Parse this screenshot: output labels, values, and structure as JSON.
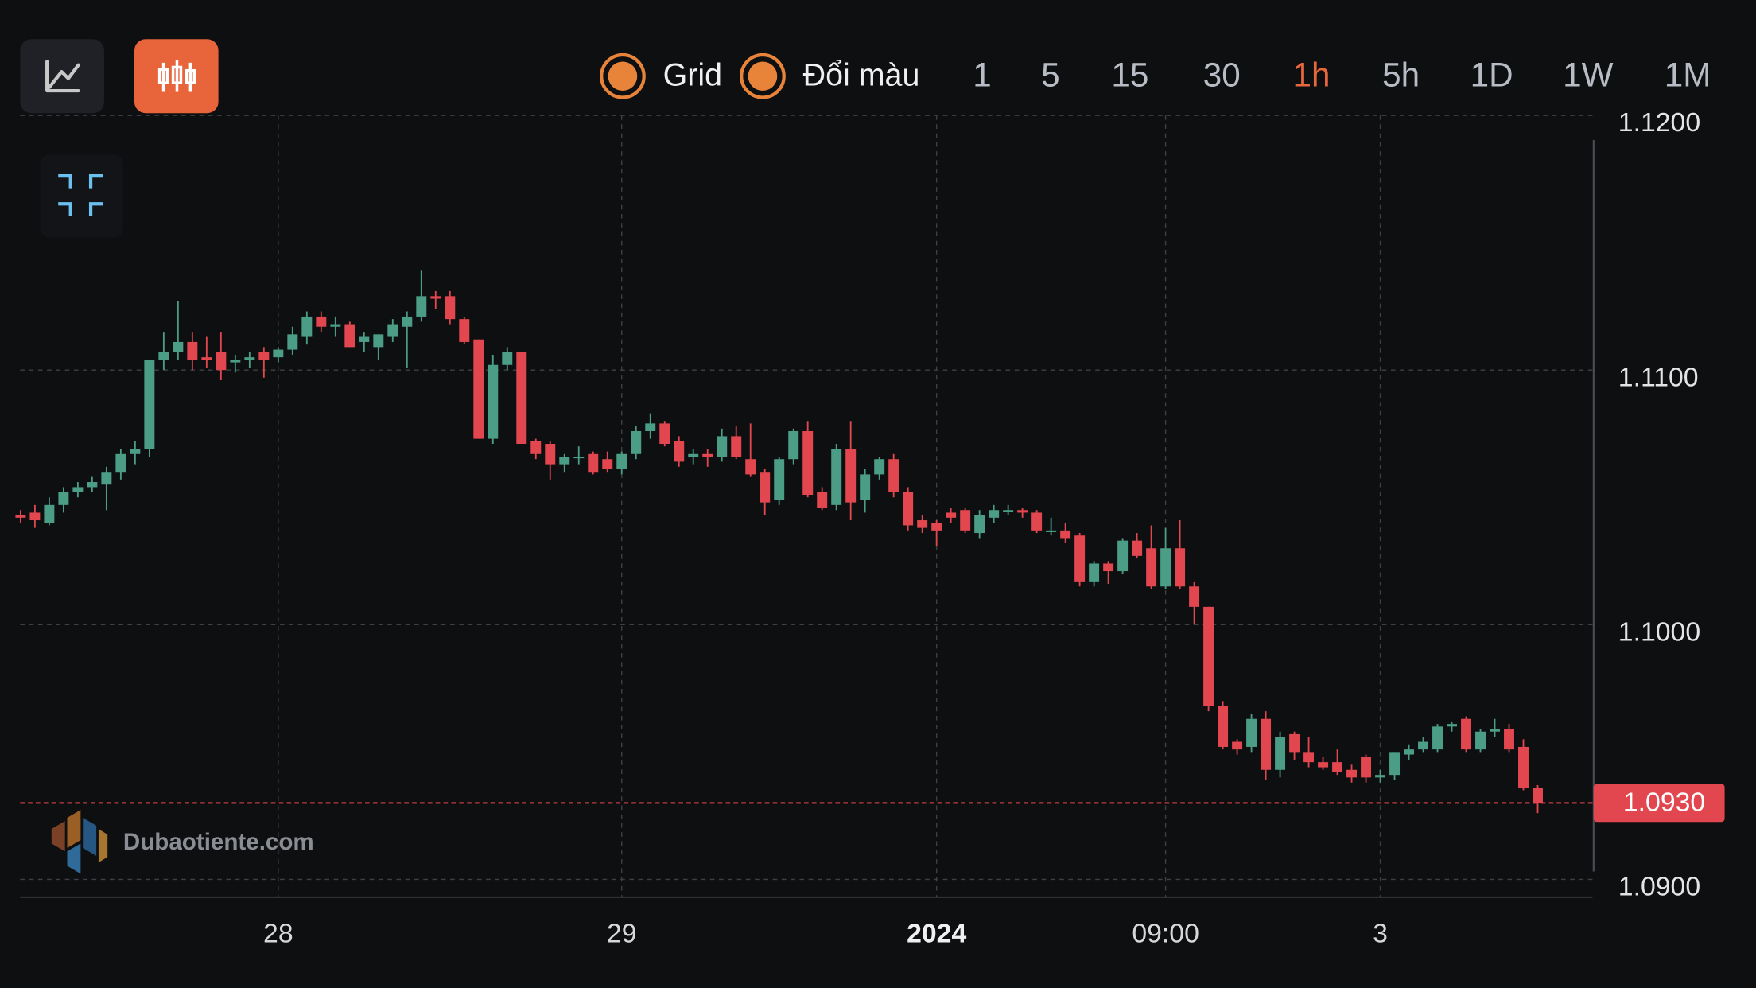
{
  "toolbar": {
    "toggles": [
      "Grid",
      "Đổi màu"
    ],
    "timeframes": [
      {
        "label": "1",
        "active": false
      },
      {
        "label": "5",
        "active": false
      },
      {
        "label": "15",
        "active": false
      },
      {
        "label": "30",
        "active": false
      },
      {
        "label": "1h",
        "active": true
      },
      {
        "label": "5h",
        "active": false
      },
      {
        "label": "1D",
        "active": false
      },
      {
        "label": "1W",
        "active": false
      },
      {
        "label": "1M",
        "active": false
      }
    ]
  },
  "watermark": "Dubaotiente.com",
  "chart_data": {
    "type": "candlestick",
    "categories": [
      null,
      null,
      null,
      null,
      null,
      null,
      null,
      null,
      null,
      null,
      null,
      null,
      null,
      null,
      null,
      null,
      null,
      null,
      "28",
      null,
      null,
      null,
      null,
      null,
      null,
      null,
      null,
      null,
      null,
      null,
      null,
      null,
      null,
      null,
      null,
      null,
      null,
      null,
      null,
      null,
      null,
      null,
      "29",
      null,
      null,
      null,
      null,
      null,
      null,
      null,
      null,
      null,
      null,
      null,
      null,
      null,
      null,
      null,
      null,
      null,
      null,
      null,
      null,
      null,
      "2024",
      null,
      null,
      null,
      null,
      null,
      null,
      null,
      null,
      null,
      null,
      null,
      null,
      null,
      null,
      null,
      "09:00",
      null,
      null,
      null,
      null,
      null,
      null,
      null,
      null,
      null,
      null,
      null,
      null,
      null,
      null,
      "3",
      null,
      null,
      null,
      null,
      null,
      null,
      null,
      null,
      null,
      null,
      null
    ],
    "ohlc": [
      [
        1.1043,
        1.1045,
        1.104,
        1.1042
      ],
      [
        1.1044,
        1.1047,
        1.1038,
        1.1041
      ],
      [
        1.104,
        1.105,
        1.1039,
        1.1047
      ],
      [
        1.1047,
        1.1054,
        1.1044,
        1.1052
      ],
      [
        1.1052,
        1.1056,
        1.105,
        1.1054
      ],
      [
        1.1054,
        1.1058,
        1.1052,
        1.1056
      ],
      [
        1.1055,
        1.1062,
        1.1045,
        1.106
      ],
      [
        1.106,
        1.1069,
        1.1057,
        1.1067
      ],
      [
        1.1067,
        1.1072,
        1.1063,
        1.1069
      ],
      [
        1.1069,
        1.1104,
        1.1066,
        1.1104
      ],
      [
        1.1104,
        1.1115,
        1.11,
        1.1107
      ],
      [
        1.1107,
        1.1127,
        1.1104,
        1.1111
      ],
      [
        1.1111,
        1.1115,
        1.11,
        1.1104
      ],
      [
        1.1105,
        1.1113,
        1.1101,
        1.1104
      ],
      [
        1.1107,
        1.1115,
        1.1096,
        1.11
      ],
      [
        1.1103,
        1.1106,
        1.1099,
        1.1104
      ],
      [
        1.1104,
        1.1107,
        1.1101,
        1.1105
      ],
      [
        1.1107,
        1.1109,
        1.1097,
        1.1104
      ],
      [
        1.1105,
        1.1109,
        1.1103,
        1.1108
      ],
      [
        1.1108,
        1.1117,
        1.1106,
        1.1114
      ],
      [
        1.1113,
        1.1123,
        1.111,
        1.1121
      ],
      [
        1.1121,
        1.1123,
        1.1115,
        1.1117
      ],
      [
        1.1117,
        1.1121,
        1.1113,
        1.1118
      ],
      [
        1.1118,
        1.1119,
        1.1109,
        1.1109
      ],
      [
        1.1111,
        1.1115,
        1.1107,
        1.1113
      ],
      [
        1.1109,
        1.1114,
        1.1104,
        1.1114
      ],
      [
        1.1113,
        1.112,
        1.1111,
        1.1118
      ],
      [
        1.1117,
        1.1123,
        1.1101,
        1.1121
      ],
      [
        1.1121,
        1.1139,
        1.1119,
        1.1129
      ],
      [
        1.1129,
        1.1131,
        1.1124,
        1.1128
      ],
      [
        1.1129,
        1.1131,
        1.1118,
        1.112
      ],
      [
        1.112,
        1.1121,
        1.111,
        1.1111
      ],
      [
        1.1112,
        1.1112,
        1.1073,
        1.1073
      ],
      [
        1.1073,
        1.1106,
        1.1071,
        1.1102
      ],
      [
        1.1102,
        1.1109,
        1.11,
        1.1107
      ],
      [
        1.1107,
        1.1107,
        1.1071,
        1.1071
      ],
      [
        1.1072,
        1.1073,
        1.1065,
        1.1067
      ],
      [
        1.1071,
        1.1072,
        1.1057,
        1.1063
      ],
      [
        1.1063,
        1.1067,
        1.106,
        1.1066
      ],
      [
        1.1066,
        1.107,
        1.1063,
        1.1066
      ],
      [
        1.1067,
        1.1068,
        1.1059,
        1.106
      ],
      [
        1.1065,
        1.1068,
        1.106,
        1.1061
      ],
      [
        1.1061,
        1.1068,
        1.1059,
        1.1067
      ],
      [
        1.1067,
        1.1078,
        1.1065,
        1.1076
      ],
      [
        1.1076,
        1.1083,
        1.1073,
        1.1079
      ],
      [
        1.1079,
        1.108,
        1.107,
        1.1071
      ],
      [
        1.1072,
        1.1074,
        1.1062,
        1.1064
      ],
      [
        1.1066,
        1.1069,
        1.1063,
        1.1067
      ],
      [
        1.1067,
        1.1069,
        1.1062,
        1.1066
      ],
      [
        1.1066,
        1.1077,
        1.1064,
        1.1074
      ],
      [
        1.1074,
        1.1078,
        1.1065,
        1.1066
      ],
      [
        1.1065,
        1.1079,
        1.1058,
        1.1059
      ],
      [
        1.106,
        1.1061,
        1.1043,
        1.1048
      ],
      [
        1.1049,
        1.1066,
        1.1047,
        1.1065
      ],
      [
        1.1065,
        1.1077,
        1.1063,
        1.1076
      ],
      [
        1.1076,
        1.108,
        1.105,
        1.1051
      ],
      [
        1.1052,
        1.1054,
        1.1045,
        1.1046
      ],
      [
        1.1047,
        1.1071,
        1.1045,
        1.1069
      ],
      [
        1.1069,
        1.108,
        1.1041,
        1.1048
      ],
      [
        1.1049,
        1.1061,
        1.1044,
        1.1059
      ],
      [
        1.1059,
        1.1066,
        1.1057,
        1.1065
      ],
      [
        1.1065,
        1.1067,
        1.105,
        1.1052
      ],
      [
        1.1052,
        1.1054,
        1.1037,
        1.1039
      ],
      [
        1.1041,
        1.1043,
        1.1036,
        1.1038
      ],
      [
        1.104,
        1.1041,
        1.1031,
        1.1037
      ],
      [
        1.1044,
        1.1046,
        1.104,
        1.1042
      ],
      [
        1.1045,
        1.1046,
        1.1036,
        1.1037
      ],
      [
        1.1036,
        1.1045,
        1.1034,
        1.1043
      ],
      [
        1.1042,
        1.1047,
        1.104,
        1.1045
      ],
      [
        1.1045,
        1.1047,
        1.1043,
        1.1045
      ],
      [
        1.1045,
        1.1046,
        1.1042,
        1.1044
      ],
      [
        1.1044,
        1.1045,
        1.1036,
        1.1037
      ],
      [
        1.1037,
        1.1042,
        1.1035,
        1.1037
      ],
      [
        1.1037,
        1.104,
        1.1032,
        1.1034
      ],
      [
        1.1035,
        1.1036,
        1.1015,
        1.1017
      ],
      [
        1.1017,
        1.1025,
        1.1015,
        1.1024
      ],
      [
        1.1024,
        1.1025,
        1.1016,
        1.1021
      ],
      [
        1.1021,
        1.1034,
        1.102,
        1.1033
      ],
      [
        1.1033,
        1.1036,
        1.1026,
        1.1027
      ],
      [
        1.103,
        1.1039,
        1.1014,
        1.1015
      ],
      [
        1.1015,
        1.1038,
        1.1014,
        1.103
      ],
      [
        1.103,
        1.1041,
        1.1014,
        1.1015
      ],
      [
        1.1015,
        1.1017,
        1.1,
        1.1007
      ],
      [
        1.1007,
        1.1007,
        1.0966,
        1.0968
      ],
      [
        1.0968,
        1.097,
        1.0951,
        1.0952
      ],
      [
        1.0954,
        1.0955,
        1.0949,
        1.0951
      ],
      [
        1.0952,
        1.0965,
        1.095,
        1.0963
      ],
      [
        1.0963,
        1.0966,
        1.0939,
        1.0943
      ],
      [
        1.0943,
        1.0958,
        1.094,
        1.0956
      ],
      [
        1.0957,
        1.0958,
        1.0947,
        1.095
      ],
      [
        1.095,
        1.0956,
        1.0944,
        1.0946
      ],
      [
        1.0946,
        1.0948,
        1.0943,
        1.0944
      ],
      [
        1.0946,
        1.0951,
        1.0941,
        1.0942
      ],
      [
        1.0943,
        1.0945,
        1.0938,
        1.094
      ],
      [
        1.0948,
        1.0949,
        1.0938,
        1.094
      ],
      [
        1.094,
        1.0943,
        1.0938,
        1.0941
      ],
      [
        1.0941,
        1.095,
        1.0939,
        1.095
      ],
      [
        1.0949,
        1.0953,
        1.0947,
        1.0951
      ],
      [
        1.0951,
        1.0956,
        1.095,
        1.0954
      ],
      [
        1.0951,
        1.0961,
        1.095,
        1.096
      ],
      [
        1.096,
        1.0962,
        1.0958,
        1.0961
      ],
      [
        1.0963,
        1.0964,
        1.095,
        1.0951
      ],
      [
        1.0951,
        1.0959,
        1.095,
        1.0958
      ],
      [
        1.0958,
        1.0963,
        1.0956,
        1.0959
      ],
      [
        1.0959,
        1.0961,
        1.095,
        1.0951
      ],
      [
        1.0952,
        1.0955,
        1.0935,
        1.0936
      ],
      [
        1.0936,
        1.0937,
        1.0926,
        1.093
      ]
    ],
    "up_color": "#4b9e85",
    "down_color": "#e2474f",
    "ylim": [
      1.09,
      1.12
    ],
    "yticks": [
      {
        "value": 1.09,
        "label": "1.0900"
      },
      {
        "value": 1.1,
        "label": "1.1000"
      },
      {
        "value": 1.11,
        "label": "1.1100"
      },
      {
        "value": 1.12,
        "label": "1.1200"
      }
    ],
    "grid": true,
    "last_price": {
      "value": 1.093,
      "label": "1.0930"
    }
  }
}
